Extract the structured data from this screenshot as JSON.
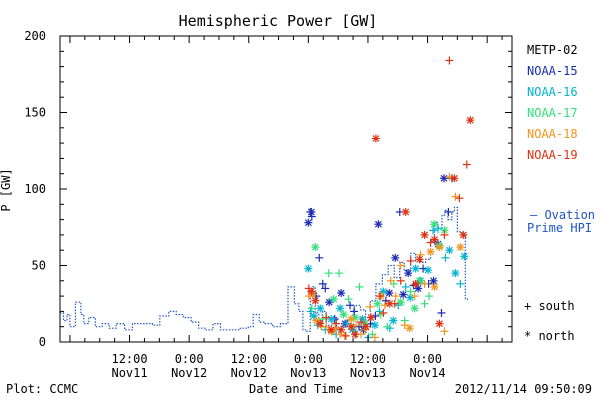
{
  "chart_data": {
    "type": "scatter",
    "title": "Hemispheric Power [GW]",
    "ylabel": "P [GW]",
    "xlabel": "Date and Time",
    "ylim": [
      0,
      200
    ],
    "y_ticks": [
      0,
      50,
      100,
      150,
      200
    ],
    "x_range_hours": [
      -26,
      65
    ],
    "x_ticks": [
      {
        "h": -12,
        "line1": "12:00",
        "line2": "Nov11"
      },
      {
        "h": 0,
        "line1": "0:00",
        "line2": "Nov12"
      },
      {
        "h": 12,
        "line1": "12:00",
        "line2": "Nov12"
      },
      {
        "h": 24,
        "line1": "0:00",
        "line2": "Nov13"
      },
      {
        "h": 36,
        "line1": "12:00",
        "line2": "Nov13"
      },
      {
        "h": 48,
        "line1": "0:00",
        "line2": "Nov14"
      }
    ],
    "footer_left": "Plot: CCMC",
    "footer_right": "2012/11/14 09:50:09",
    "ovation": {
      "name_line1": "– Ovation",
      "name_line2": "Prime HPI",
      "color": "#1f55c8",
      "style": "dotted-step",
      "points": [
        [
          -26,
          19
        ],
        [
          -25.3,
          14
        ],
        [
          -24.6,
          18
        ],
        [
          -24,
          10
        ],
        [
          -22.9,
          26
        ],
        [
          -21.8,
          18
        ],
        [
          -21.2,
          12
        ],
        [
          -20.2,
          16
        ],
        [
          -18.9,
          10
        ],
        [
          -17.5,
          12
        ],
        [
          -16.1,
          9
        ],
        [
          -14.7,
          12
        ],
        [
          -13,
          8
        ],
        [
          -11.4,
          12
        ],
        [
          -9.1,
          12
        ],
        [
          -7.4,
          11
        ],
        [
          -5.9,
          17
        ],
        [
          -4.1,
          20
        ],
        [
          -2.6,
          18
        ],
        [
          -1.2,
          16
        ],
        [
          0.4,
          13
        ],
        [
          1.9,
          9
        ],
        [
          3.4,
          8
        ],
        [
          4.8,
          12
        ],
        [
          6.3,
          8
        ],
        [
          8.3,
          8
        ],
        [
          10.3,
          9
        ],
        [
          11.9,
          10
        ],
        [
          12.9,
          18
        ],
        [
          14.1,
          13
        ],
        [
          15.3,
          12
        ],
        [
          16.8,
          10
        ],
        [
          18.4,
          12
        ],
        [
          19.9,
          36
        ],
        [
          21.2,
          25
        ],
        [
          22.1,
          20
        ],
        [
          22.9,
          8
        ],
        [
          23.6,
          7
        ],
        [
          24.4,
          30
        ],
        [
          24.9,
          36
        ],
        [
          25.4,
          19
        ],
        [
          26.1,
          14
        ],
        [
          26.8,
          20
        ],
        [
          27.6,
          11
        ],
        [
          28.7,
          16
        ],
        [
          29.7,
          8
        ],
        [
          30.7,
          12
        ],
        [
          31.9,
          15
        ],
        [
          33.3,
          24
        ],
        [
          34.5,
          21
        ],
        [
          35.5,
          14
        ],
        [
          36.5,
          27
        ],
        [
          37.6,
          38
        ],
        [
          38.9,
          44
        ],
        [
          40.1,
          50
        ],
        [
          41.3,
          42
        ],
        [
          42.4,
          52
        ],
        [
          43.3,
          47
        ],
        [
          44.6,
          58
        ],
        [
          45.6,
          53
        ],
        [
          46.6,
          52
        ],
        [
          47.6,
          54
        ],
        [
          48.6,
          66
        ],
        [
          49.4,
          78
        ],
        [
          50.1,
          75
        ],
        [
          50.9,
          83
        ],
        [
          51.5,
          86
        ],
        [
          52.1,
          80
        ],
        [
          52.9,
          85
        ],
        [
          53.4,
          88
        ],
        [
          54,
          72
        ],
        [
          54.9,
          70
        ],
        [
          55.6,
          28
        ]
      ]
    },
    "series": [
      {
        "name": "METP-02",
        "color": "#000000",
        "points": []
      },
      {
        "name": "NOAA-15",
        "color": "#1c2db4",
        "points": [
          [
            24.4,
            85,
            "plus"
          ],
          [
            24.7,
            82,
            "plus"
          ],
          [
            24,
            78,
            "star"
          ],
          [
            24.6,
            85,
            "star"
          ],
          [
            25.6,
            30,
            "plus"
          ],
          [
            26.2,
            55,
            "plus"
          ],
          [
            26.9,
            38,
            "plus"
          ],
          [
            27.4,
            35,
            "plus"
          ],
          [
            28.2,
            26,
            "star"
          ],
          [
            29.3,
            15,
            "plus"
          ],
          [
            30.6,
            32,
            "star"
          ],
          [
            31.4,
            12,
            "star"
          ],
          [
            32.4,
            24,
            "plus"
          ],
          [
            33.2,
            20,
            "plus"
          ],
          [
            34.2,
            10,
            "plus"
          ],
          [
            35.1,
            8,
            "star"
          ],
          [
            36.5,
            12,
            "plus"
          ],
          [
            37.5,
            17,
            "plus"
          ],
          [
            38.1,
            77,
            "star"
          ],
          [
            39.6,
            27,
            "plus"
          ],
          [
            40.3,
            32,
            "star"
          ],
          [
            41.5,
            55,
            "star"
          ],
          [
            42.4,
            85,
            "plus"
          ],
          [
            43.1,
            31,
            "star"
          ],
          [
            44.1,
            45,
            "star"
          ],
          [
            45.2,
            37,
            "plus"
          ],
          [
            46.1,
            35,
            "star"
          ],
          [
            47.1,
            48,
            "plus"
          ],
          [
            48.2,
            38,
            "plus"
          ],
          [
            49.2,
            40,
            "star"
          ],
          [
            50.1,
            64,
            "star"
          ],
          [
            50.8,
            19,
            "plus"
          ],
          [
            51.3,
            107,
            "star"
          ],
          [
            52.2,
            85,
            "plus"
          ],
          [
            52.9,
            107,
            "plus"
          ]
        ]
      },
      {
        "name": "NOAA-16",
        "color": "#00b4d2",
        "points": [
          [
            24,
            48,
            "star"
          ],
          [
            24.5,
            20,
            "plus"
          ],
          [
            25.1,
            17,
            "star"
          ],
          [
            25.9,
            11,
            "plus"
          ],
          [
            26.4,
            22,
            "star"
          ],
          [
            27.4,
            8,
            "plus"
          ],
          [
            28.6,
            15,
            "star"
          ],
          [
            29.6,
            5,
            "plus"
          ],
          [
            30.4,
            22,
            "star"
          ],
          [
            31.7,
            12,
            "plus"
          ],
          [
            32.9,
            8,
            "star"
          ],
          [
            33.6,
            5,
            "plus"
          ],
          [
            34.9,
            15,
            "star"
          ],
          [
            36.1,
            3,
            "plus"
          ],
          [
            37.4,
            11,
            "star"
          ],
          [
            38.3,
            20,
            "plus"
          ],
          [
            39.1,
            33,
            "star"
          ],
          [
            40.4,
            9,
            "plus"
          ],
          [
            41.1,
            14,
            "star"
          ],
          [
            42.1,
            24,
            "plus"
          ],
          [
            43.6,
            36,
            "plus"
          ],
          [
            44.5,
            29,
            "star"
          ],
          [
            45.6,
            48,
            "star"
          ],
          [
            46.6,
            40,
            "star"
          ],
          [
            48.1,
            47,
            "star"
          ],
          [
            49.1,
            73,
            "plus"
          ],
          [
            50.1,
            74,
            "plus"
          ],
          [
            51.6,
            55,
            "plus"
          ],
          [
            52.4,
            60,
            "star"
          ],
          [
            53.6,
            45,
            "star"
          ],
          [
            54.6,
            38,
            "plus"
          ],
          [
            55.4,
            56,
            "star"
          ]
        ]
      },
      {
        "name": "NOAA-17",
        "color": "#34e07c",
        "points": [
          [
            24.7,
            22,
            "plus"
          ],
          [
            25.4,
            62,
            "star"
          ],
          [
            26.9,
            15,
            "plus"
          ],
          [
            28.1,
            45,
            "plus"
          ],
          [
            29.1,
            28,
            "star"
          ],
          [
            30.2,
            45,
            "plus"
          ],
          [
            31.1,
            18,
            "star"
          ],
          [
            32.1,
            28,
            "plus"
          ],
          [
            33.4,
            16,
            "star"
          ],
          [
            34.3,
            36,
            "plus"
          ],
          [
            35.4,
            12,
            "star"
          ],
          [
            36.9,
            5,
            "plus"
          ],
          [
            37.9,
            25,
            "star"
          ],
          [
            38.6,
            18,
            "plus"
          ],
          [
            39.9,
            10,
            "plus"
          ],
          [
            41.2,
            38,
            "plus"
          ],
          [
            42.6,
            26,
            "star"
          ],
          [
            43.4,
            14,
            "plus"
          ],
          [
            44.6,
            33,
            "plus"
          ],
          [
            45.4,
            22,
            "star"
          ],
          [
            46.4,
            40,
            "star"
          ],
          [
            47.4,
            25,
            "plus"
          ],
          [
            48.3,
            30,
            "plus"
          ],
          [
            49.3,
            77,
            "star"
          ],
          [
            50.4,
            63,
            "star"
          ],
          [
            51.4,
            73,
            "star"
          ]
        ]
      },
      {
        "name": "NOAA-18",
        "color": "#f0961e",
        "points": [
          [
            24.1,
            30,
            "plus"
          ],
          [
            24.9,
            31,
            "star"
          ],
          [
            25.6,
            14,
            "star"
          ],
          [
            26.6,
            10,
            "plus"
          ],
          [
            27.6,
            10,
            "plus"
          ],
          [
            28.6,
            7,
            "star"
          ],
          [
            29.4,
            9,
            "plus"
          ],
          [
            30.4,
            5,
            "plus"
          ],
          [
            31.6,
            4,
            "plus"
          ],
          [
            32.6,
            15,
            "star"
          ],
          [
            33.6,
            11,
            "plus"
          ],
          [
            34.6,
            5,
            "plus"
          ],
          [
            35.4,
            8,
            "plus"
          ],
          [
            36.4,
            23,
            "plus"
          ],
          [
            37.4,
            3,
            "plus"
          ],
          [
            38.6,
            30,
            "star"
          ],
          [
            39.4,
            24,
            "plus"
          ],
          [
            40.6,
            40,
            "plus"
          ],
          [
            41.6,
            30,
            "plus"
          ],
          [
            42.6,
            50,
            "plus"
          ],
          [
            43.4,
            11,
            "plus"
          ],
          [
            44.4,
            9,
            "star"
          ],
          [
            45.4,
            30,
            "plus"
          ],
          [
            46.6,
            57,
            "plus"
          ],
          [
            47.4,
            38,
            "plus"
          ],
          [
            48.6,
            59,
            "star"
          ],
          [
            49.4,
            36,
            "star"
          ],
          [
            50.4,
            62,
            "star"
          ],
          [
            51.4,
            7,
            "plus"
          ],
          [
            52.4,
            108,
            "plus"
          ],
          [
            53.6,
            95,
            "plus"
          ],
          [
            54.6,
            62,
            "star"
          ]
        ]
      },
      {
        "name": "NOAA-19",
        "color": "#e03010",
        "points": [
          [
            24.1,
            35,
            "plus"
          ],
          [
            24.6,
            33,
            "star"
          ],
          [
            25.4,
            27,
            "star"
          ],
          [
            26.4,
            12,
            "star"
          ],
          [
            27.6,
            16,
            "plus"
          ],
          [
            28.6,
            8,
            "star"
          ],
          [
            29.6,
            12,
            "plus"
          ],
          [
            30.6,
            8,
            "star"
          ],
          [
            31.4,
            4,
            "plus"
          ],
          [
            32.6,
            10,
            "star"
          ],
          [
            33.4,
            5,
            "star"
          ],
          [
            34.6,
            13,
            "plus"
          ],
          [
            35.6,
            10,
            "star"
          ],
          [
            36.6,
            16,
            "star"
          ],
          [
            37.6,
            133,
            "star"
          ],
          [
            38.4,
            30,
            "plus"
          ],
          [
            39.1,
            19,
            "plus"
          ],
          [
            40.4,
            25,
            "star"
          ],
          [
            41.4,
            25,
            "plus"
          ],
          [
            42.6,
            40,
            "plus"
          ],
          [
            43.6,
            85,
            "star"
          ],
          [
            44.6,
            53,
            "plus"
          ],
          [
            45.6,
            38,
            "star"
          ],
          [
            46.4,
            54,
            "star"
          ],
          [
            47.4,
            70,
            "star"
          ],
          [
            48.6,
            65,
            "plus"
          ],
          [
            49.4,
            67,
            "star"
          ],
          [
            50.4,
            12,
            "star"
          ],
          [
            51.4,
            70,
            "plus"
          ],
          [
            52.4,
            184,
            "plus"
          ],
          [
            53.4,
            107,
            "star"
          ],
          [
            54.4,
            94,
            "plus"
          ],
          [
            55.2,
            70,
            "star"
          ],
          [
            55.9,
            116,
            "plus"
          ],
          [
            56.6,
            145,
            "star"
          ]
        ]
      }
    ],
    "marker_legend": [
      {
        "symbol": "+",
        "label": "south"
      },
      {
        "symbol": "*",
        "label": "north"
      }
    ]
  }
}
